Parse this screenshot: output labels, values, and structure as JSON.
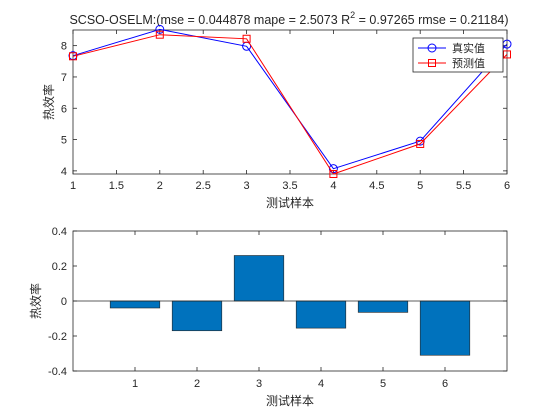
{
  "chart_data": [
    {
      "type": "line",
      "title_prefix": "SCSO-OSELM:(mse = 0.044878 mape = 2.5073  R",
      "title_sup": "2",
      "title_suffix": " = 0.97265 rmse = 0.21184)",
      "xlabel": "测试样本",
      "ylabel": "热效率",
      "xlim": [
        1,
        6
      ],
      "ylim": [
        3.9,
        8.5
      ],
      "xticks": [
        1,
        1.5,
        2,
        2.5,
        3,
        3.5,
        4,
        4.5,
        5,
        5.5,
        6
      ],
      "yticks": [
        4,
        5,
        6,
        7,
        8
      ],
      "x": [
        1,
        2,
        3,
        4,
        5,
        6
      ],
      "series": [
        {
          "name": "真实值",
          "values": [
            7.68,
            8.52,
            7.98,
            4.07,
            4.95,
            8.05
          ],
          "color": "#0000ff",
          "marker": "circle"
        },
        {
          "name": "预测值",
          "values": [
            7.66,
            8.35,
            8.22,
            3.9,
            4.86,
            7.72
          ],
          "color": "#ff0000",
          "marker": "square"
        }
      ],
      "legend": "top-right",
      "grid": false
    },
    {
      "type": "bar",
      "title": "",
      "xlabel": "测试样本",
      "ylabel": "热效率",
      "categories": [
        "1",
        "2",
        "3",
        "4",
        "5",
        "6"
      ],
      "values": [
        -0.04,
        -0.17,
        0.26,
        -0.155,
        -0.065,
        -0.31
      ],
      "ylim": [
        -0.4,
        0.4
      ],
      "yticks": [
        "0.4",
        "0.2",
        "0",
        "-0.2",
        "-0.4"
      ],
      "color": "#0072bd",
      "grid": false
    }
  ]
}
